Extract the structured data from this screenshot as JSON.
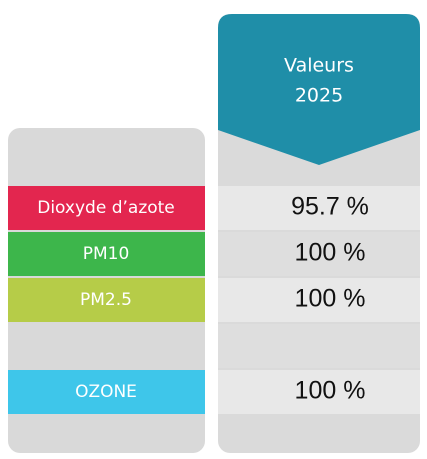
{
  "header": {
    "lines": [
      "Valeurs",
      "2025"
    ]
  },
  "rows": [
    {
      "label": "Dioxyde d’azote",
      "value": "95.7 %",
      "color": "#e3264f"
    },
    {
      "label": "PM10",
      "value": "100 %",
      "color": "#3db64b"
    },
    {
      "label": "PM2.5",
      "value": "100 %",
      "color": "#b6cc48"
    },
    {
      "label": null,
      "value": null,
      "color": null
    },
    {
      "label": "OZONE",
      "value": "100 %",
      "color": "#3ec6ea"
    }
  ]
}
